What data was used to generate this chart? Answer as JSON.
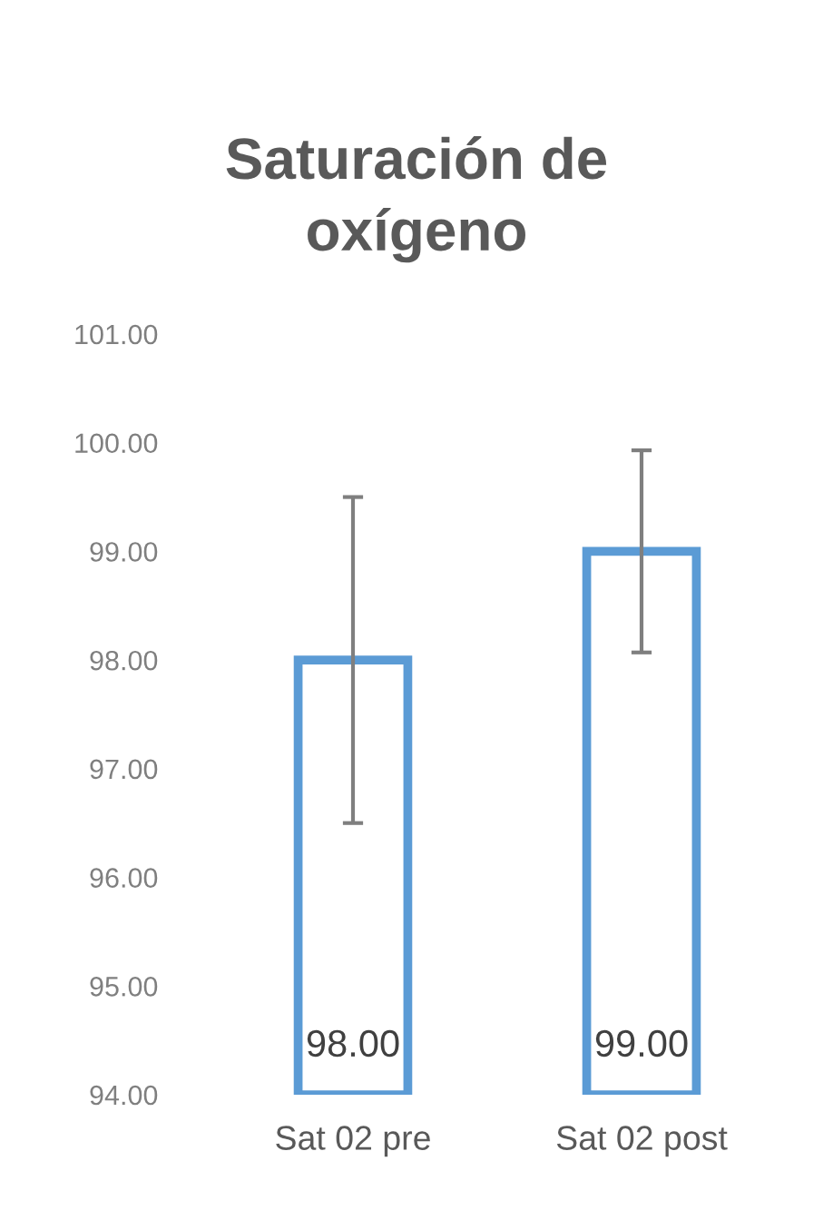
{
  "chart_data": {
    "type": "bar",
    "title": "Saturación de\noxígeno",
    "categories": [
      "Sat 02 pre",
      "Sat 02 post"
    ],
    "values": [
      98.0,
      99.0
    ],
    "color": "#5b9bd5",
    "errors": [
      1.5,
      0.93
    ],
    "value_labels": [
      "98.00",
      "99.00"
    ],
    "ylim": [
      94,
      101
    ],
    "yticks": [
      {
        "value": 94,
        "label": "94.00"
      },
      {
        "value": 95,
        "label": "95.00"
      },
      {
        "value": 96,
        "label": "96.00"
      },
      {
        "value": 97,
        "label": "97.00"
      },
      {
        "value": 98,
        "label": "98.00"
      },
      {
        "value": 99,
        "label": "99.00"
      },
      {
        "value": 100,
        "label": "100.00"
      },
      {
        "value": 101,
        "label": "101.00"
      }
    ],
    "grid": false,
    "legend": false
  }
}
